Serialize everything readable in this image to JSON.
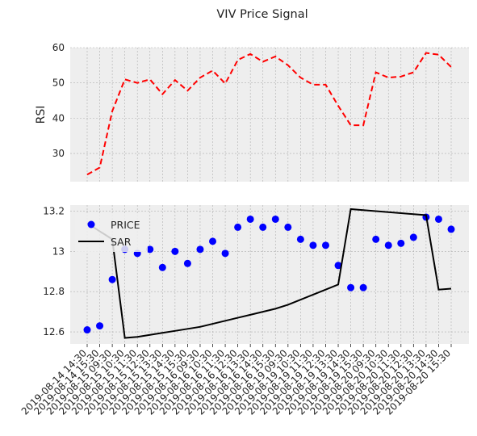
{
  "chart_data": {
    "type": "line",
    "title": "VIV Price Signal",
    "x": [
      "2019-08-14 14:30",
      "2019-08-14 15:30",
      "2019-08-15 09:30",
      "2019-08-15 10:30",
      "2019-08-15 11:30",
      "2019-08-15 12:30",
      "2019-08-15 13:30",
      "2019-08-15 14:30",
      "2019-08-15 15:30",
      "2019-08-16 09:30",
      "2019-08-16 10:30",
      "2019-08-16 11:30",
      "2019-08-16 12:30",
      "2019-08-16 13:30",
      "2019-08-16 14:30",
      "2019-08-16 15:30",
      "2019-08-19 09:30",
      "2019-08-19 10:30",
      "2019-08-19 11:30",
      "2019-08-19 12:30",
      "2019-08-19 13:30",
      "2019-08-19 14:30",
      "2019-08-19 15:30",
      "2019-08-20 09:30",
      "2019-08-20 10:30",
      "2019-08-20 11:30",
      "2019-08-20 12:30",
      "2019-08-20 13:30",
      "2019-08-20 14:30",
      "2019-08-20 15:30"
    ],
    "panels": [
      {
        "ylabel": "RSI",
        "ylim": [
          22,
          60
        ],
        "yticks": [
          30,
          40,
          50,
          60
        ],
        "grid": true,
        "series": [
          {
            "style": "dashed-line",
            "color": "#ff0000",
            "values": [
              24.0,
              26.0,
              42.0,
              51.0,
              50.0,
              51.0,
              46.8,
              50.8,
              47.8,
              51.5,
              53.5,
              49.8,
              56.5,
              58.2,
              56.0,
              57.5,
              55.0,
              51.5,
              49.5,
              49.5,
              43.5,
              38.0,
              38.0,
              53.0,
              51.5,
              51.8,
              53.0,
              58.5,
              58.0,
              54.5
            ]
          }
        ]
      },
      {
        "ylabel": "",
        "ylim": [
          12.54,
          13.23
        ],
        "yticks": [
          12.6,
          12.8,
          13.0,
          13.2
        ],
        "grid": true,
        "legend": "upper-left",
        "series": [
          {
            "name": "PRICE",
            "style": "scatter",
            "color": "#0000ff",
            "values": [
              12.61,
              12.63,
              12.86,
              13.01,
              12.99,
              13.01,
              12.92,
              13.0,
              12.94,
              13.01,
              13.05,
              12.99,
              13.12,
              13.16,
              13.12,
              13.16,
              13.12,
              13.06,
              13.03,
              13.03,
              12.93,
              12.82,
              12.82,
              13.06,
              13.03,
              13.04,
              13.07,
              13.17,
              13.16,
              13.11
            ]
          },
          {
            "name": "SAR",
            "style": "line",
            "color": "#000000",
            "values": [
              13.14,
              13.1,
              13.06,
              12.57,
              12.575,
              12.585,
              12.595,
              12.605,
              12.615,
              12.625,
              12.64,
              12.655,
              12.67,
              12.685,
              12.7,
              12.715,
              12.735,
              12.76,
              12.785,
              12.81,
              12.835,
              13.21,
              13.205,
              13.2,
              13.195,
              13.19,
              13.185,
              13.18,
              12.81,
              12.815
            ]
          }
        ]
      }
    ]
  }
}
